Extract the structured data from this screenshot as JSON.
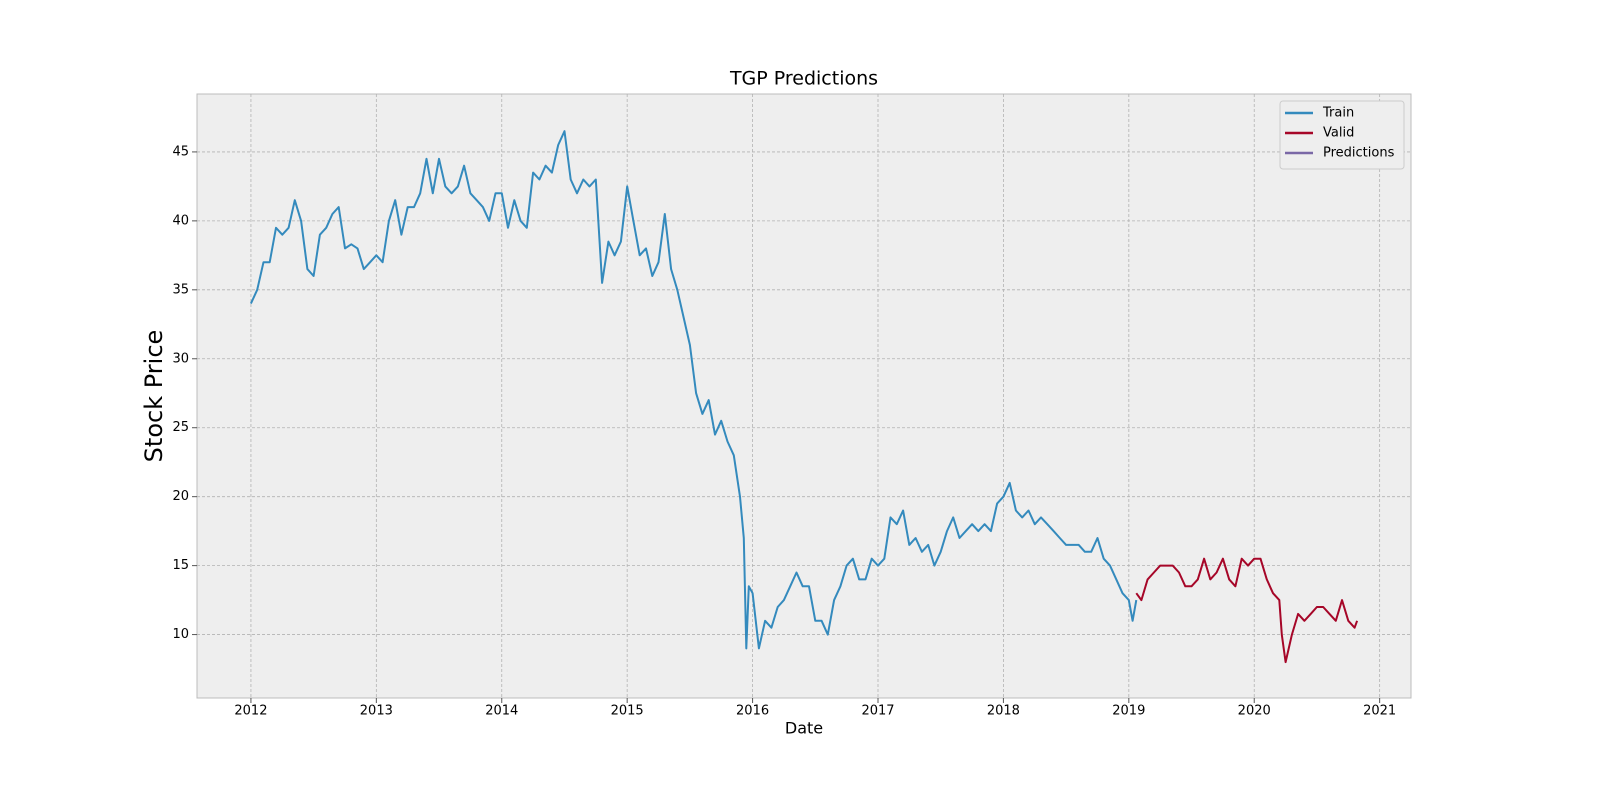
{
  "chart_data": {
    "type": "line",
    "title": "TGP Predictions",
    "x_label": "Date",
    "y_label": "Stock Price",
    "xlim": [
      2011.57,
      2021.25
    ],
    "xticks": [
      2012,
      2013,
      2014,
      2015,
      2016,
      2017,
      2018,
      2019,
      2020,
      2021
    ],
    "ylim": [
      5.4,
      49.2
    ],
    "yticks": [
      10,
      15,
      20,
      25,
      30,
      35,
      40,
      45
    ],
    "grid": true,
    "legend": "upper right",
    "series": [
      {
        "name": "Train",
        "color": "#348abd",
        "x": [
          2012.0,
          2012.05,
          2012.1,
          2012.15,
          2012.2,
          2012.25,
          2012.3,
          2012.35,
          2012.4,
          2012.45,
          2012.5,
          2012.55,
          2012.6,
          2012.65,
          2012.7,
          2012.75,
          2012.8,
          2012.85,
          2012.9,
          2012.95,
          2013.0,
          2013.05,
          2013.1,
          2013.15,
          2013.2,
          2013.25,
          2013.3,
          2013.35,
          2013.4,
          2013.45,
          2013.5,
          2013.55,
          2013.6,
          2013.65,
          2013.7,
          2013.75,
          2013.8,
          2013.85,
          2013.9,
          2013.95,
          2014.0,
          2014.05,
          2014.1,
          2014.15,
          2014.2,
          2014.25,
          2014.3,
          2014.35,
          2014.4,
          2014.45,
          2014.5,
          2014.55,
          2014.6,
          2014.65,
          2014.7,
          2014.75,
          2014.8,
          2014.85,
          2014.9,
          2014.95,
          2015.0,
          2015.05,
          2015.1,
          2015.15,
          2015.2,
          2015.25,
          2015.3,
          2015.35,
          2015.4,
          2015.45,
          2015.5,
          2015.55,
          2015.6,
          2015.65,
          2015.7,
          2015.75,
          2015.8,
          2015.85,
          2015.9,
          2015.93,
          2015.95,
          2015.97,
          2016.0,
          2016.05,
          2016.1,
          2016.15,
          2016.2,
          2016.25,
          2016.3,
          2016.35,
          2016.4,
          2016.45,
          2016.5,
          2016.55,
          2016.6,
          2016.65,
          2016.7,
          2016.75,
          2016.8,
          2016.85,
          2016.9,
          2016.95,
          2017.0,
          2017.05,
          2017.1,
          2017.15,
          2017.2,
          2017.25,
          2017.3,
          2017.35,
          2017.4,
          2017.45,
          2017.5,
          2017.55,
          2017.6,
          2017.65,
          2017.7,
          2017.75,
          2017.8,
          2017.85,
          2017.9,
          2017.95,
          2018.0,
          2018.05,
          2018.1,
          2018.15,
          2018.2,
          2018.25,
          2018.3,
          2018.35,
          2018.4,
          2018.45,
          2018.5,
          2018.55,
          2018.6,
          2018.65,
          2018.7,
          2018.75,
          2018.8,
          2018.85,
          2018.9,
          2018.95,
          2019.0,
          2019.03,
          2019.06
        ],
        "values": [
          34,
          35,
          37,
          37,
          39.5,
          39,
          39.5,
          41.5,
          40,
          36.5,
          36,
          39,
          39.5,
          40.5,
          41,
          38,
          38.3,
          38,
          36.5,
          37,
          37.5,
          37,
          40,
          41.5,
          39,
          41,
          41,
          42,
          44.5,
          42,
          44.5,
          42.5,
          42,
          42.5,
          44,
          42,
          41.5,
          41,
          40,
          42,
          42,
          39.5,
          41.5,
          40,
          39.5,
          43.5,
          43,
          44,
          43.5,
          45.5,
          46.5,
          43,
          42,
          43,
          42.5,
          43,
          35.5,
          38.5,
          37.5,
          38.5,
          42.5,
          40,
          37.5,
          38,
          36,
          37,
          40.5,
          36.5,
          35,
          33,
          31,
          27.5,
          26,
          27,
          24.5,
          25.5,
          24,
          23,
          20,
          17,
          9,
          13.5,
          13,
          9,
          11,
          10.5,
          12,
          12.5,
          13.5,
          14.5,
          13.5,
          13.5,
          11,
          11,
          10,
          12.5,
          13.5,
          15,
          15.5,
          14,
          14,
          15.5,
          15,
          15.5,
          18.5,
          18,
          19,
          16.5,
          17,
          16,
          16.5,
          15,
          16,
          17.5,
          18.5,
          17,
          17.5,
          18,
          17.5,
          18,
          17.5,
          19.5,
          20,
          21,
          19,
          18.5,
          19,
          18,
          18.5,
          18,
          17.5,
          17,
          16.5,
          16.5,
          16.5,
          16,
          16,
          17,
          15.5,
          15,
          14,
          13,
          12.5,
          11,
          12.5
        ]
      },
      {
        "name": "Valid",
        "color": "#a60628",
        "x": [
          2019.06,
          2019.1,
          2019.15,
          2019.2,
          2019.25,
          2019.3,
          2019.35,
          2019.4,
          2019.45,
          2019.5,
          2019.55,
          2019.6,
          2019.65,
          2019.7,
          2019.75,
          2019.8,
          2019.85,
          2019.9,
          2019.95,
          2020.0,
          2020.05,
          2020.1,
          2020.15,
          2020.2,
          2020.22,
          2020.25,
          2020.3,
          2020.35,
          2020.4,
          2020.45,
          2020.5,
          2020.55,
          2020.6,
          2020.65,
          2020.7,
          2020.75,
          2020.8,
          2020.82
        ],
        "values": [
          13,
          12.5,
          14,
          14.5,
          15,
          15,
          15,
          14.5,
          13.5,
          13.5,
          14,
          15.5,
          14,
          14.5,
          15.5,
          14,
          13.5,
          15.5,
          15,
          15.5,
          15.5,
          14,
          13,
          12.5,
          10,
          8,
          10,
          11.5,
          11,
          11.5,
          12,
          12,
          11.5,
          11,
          12.5,
          11,
          10.5,
          11
        ]
      },
      {
        "name": "Predictions",
        "color": "#7a68a6",
        "x": [],
        "values": []
      }
    ]
  }
}
